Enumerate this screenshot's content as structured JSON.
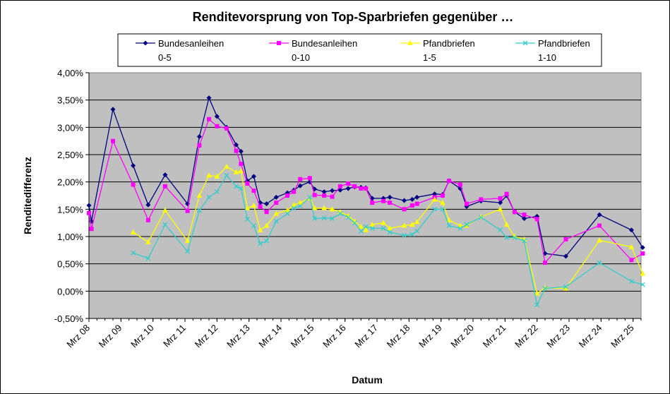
{
  "chart_data": {
    "type": "line",
    "title": "Renditevorsprung von Top-Sparbriefen gegenüber …",
    "xlabel": "Datum",
    "ylabel": "Renditedifferenz",
    "ylim": [
      -0.5,
      4.0
    ],
    "y_step": 0.5,
    "x_range": [
      2008.0,
      2025.25
    ],
    "y_ticks": [
      "-0,50%",
      "0,00%",
      "0,50%",
      "1,00%",
      "1,50%",
      "2,00%",
      "2,50%",
      "3,00%",
      "3,50%",
      "4,00%"
    ],
    "x_ticks": [
      {
        "label": "Mrz 08",
        "x": 2008.0
      },
      {
        "label": "Mrz 09",
        "x": 2009.0
      },
      {
        "label": "Mrz 10",
        "x": 2010.0
      },
      {
        "label": "Mrz 11",
        "x": 2011.0
      },
      {
        "label": "Mrz 12",
        "x": 2012.0
      },
      {
        "label": "Mrz 13",
        "x": 2013.0
      },
      {
        "label": "Mrz 14",
        "x": 2014.0
      },
      {
        "label": "Mrz 15",
        "x": 2015.0
      },
      {
        "label": "Mrz 16",
        "x": 2016.0
      },
      {
        "label": "Mrz 17",
        "x": 2017.0
      },
      {
        "label": "Mrz 18",
        "x": 2018.0
      },
      {
        "label": "Mrz 19",
        "x": 2019.0
      },
      {
        "label": "Mrz 20",
        "x": 2020.0
      },
      {
        "label": "Mrz 21",
        "x": 2021.0
      },
      {
        "label": "Mrz 22",
        "x": 2022.0
      },
      {
        "label": "Mrz 23",
        "x": 2023.0
      },
      {
        "label": "Mrz 24",
        "x": 2024.0
      },
      {
        "label": "Mrz 25",
        "x": 2025.0
      }
    ],
    "grid": true,
    "legend_position": "top",
    "series": [
      {
        "name_line1": "Bundesanleihen",
        "name_line2": "0-5",
        "color": "#000080",
        "marker": "diamond",
        "x": [
          2008.0,
          2008.08,
          2008.75,
          2009.38,
          2009.85,
          2010.38,
          2011.08,
          2011.45,
          2011.75,
          2012.0,
          2012.3,
          2012.6,
          2012.75,
          2012.95,
          2013.15,
          2013.35,
          2013.55,
          2013.85,
          2014.2,
          2014.4,
          2014.6,
          2014.9,
          2015.05,
          2015.35,
          2015.6,
          2015.85,
          2016.1,
          2016.3,
          2016.5,
          2016.65,
          2016.85,
          2017.2,
          2017.4,
          2017.85,
          2018.1,
          2018.25,
          2018.8,
          2019.05,
          2019.25,
          2019.6,
          2019.8,
          2020.25,
          2020.85,
          2021.05,
          2021.3,
          2021.6,
          2022.0,
          2022.25,
          2022.9,
          2023.95,
          2024.95,
          2025.3
        ],
        "y": [
          1.57,
          1.28,
          3.33,
          2.3,
          1.58,
          2.13,
          1.6,
          2.83,
          3.54,
          3.2,
          3.0,
          2.68,
          2.56,
          2.02,
          2.1,
          1.62,
          1.6,
          1.72,
          1.8,
          1.85,
          1.93,
          2.0,
          1.87,
          1.82,
          1.84,
          1.85,
          1.88,
          1.91,
          1.9,
          1.89,
          1.7,
          1.7,
          1.72,
          1.66,
          1.68,
          1.72,
          1.78,
          1.77,
          2.02,
          1.88,
          1.55,
          1.65,
          1.62,
          1.75,
          1.45,
          1.33,
          1.37,
          0.69,
          0.64,
          1.4,
          1.12,
          0.8
        ]
      },
      {
        "name_line1": "Bundesanleihen",
        "name_line2": "0-10",
        "color": "#ff00ff",
        "marker": "square",
        "x": [
          2008.0,
          2008.08,
          2008.75,
          2009.38,
          2009.85,
          2010.38,
          2011.08,
          2011.45,
          2011.75,
          2012.0,
          2012.3,
          2012.6,
          2012.75,
          2012.95,
          2013.15,
          2013.35,
          2013.55,
          2013.85,
          2014.2,
          2014.4,
          2014.6,
          2014.9,
          2015.05,
          2015.35,
          2015.6,
          2015.85,
          2016.1,
          2016.3,
          2016.5,
          2016.65,
          2016.85,
          2017.2,
          2017.4,
          2017.85,
          2018.1,
          2018.25,
          2018.8,
          2019.05,
          2019.25,
          2019.6,
          2019.8,
          2020.25,
          2020.85,
          2021.05,
          2021.3,
          2021.6,
          2022.0,
          2022.25,
          2022.9,
          2023.95,
          2024.95,
          2025.3
        ],
        "y": [
          1.43,
          1.14,
          2.75,
          1.95,
          1.3,
          1.92,
          1.47,
          2.67,
          3.15,
          3.02,
          2.98,
          2.57,
          2.33,
          1.97,
          1.84,
          1.55,
          1.45,
          1.62,
          1.75,
          1.82,
          2.05,
          2.07,
          1.76,
          1.75,
          1.73,
          1.92,
          1.97,
          1.92,
          1.88,
          1.88,
          1.62,
          1.65,
          1.62,
          1.5,
          1.57,
          1.6,
          1.72,
          1.75,
          2.02,
          1.95,
          1.6,
          1.68,
          1.7,
          1.78,
          1.45,
          1.4,
          1.32,
          0.52,
          0.95,
          1.2,
          0.57,
          0.69
        ]
      },
      {
        "name_line1": "Pfandbriefen",
        "name_line2": "1-5",
        "color": "#ffff00",
        "marker": "triangle",
        "x": [
          2009.38,
          2009.85,
          2010.38,
          2011.08,
          2011.45,
          2011.75,
          2012.0,
          2012.3,
          2012.6,
          2012.75,
          2012.95,
          2013.15,
          2013.35,
          2013.55,
          2013.85,
          2014.2,
          2014.4,
          2014.6,
          2014.9,
          2015.05,
          2015.35,
          2015.6,
          2015.85,
          2016.1,
          2016.3,
          2016.5,
          2016.65,
          2016.85,
          2017.2,
          2017.4,
          2017.85,
          2018.1,
          2018.25,
          2018.8,
          2019.05,
          2019.25,
          2019.6,
          2019.8,
          2020.25,
          2020.85,
          2021.05,
          2021.3,
          2021.6,
          2022.0,
          2022.25,
          2022.9,
          2023.95,
          2024.95,
          2025.3
        ],
        "y": [
          1.08,
          0.9,
          1.48,
          0.92,
          1.75,
          2.12,
          2.1,
          2.28,
          2.18,
          2.2,
          1.52,
          1.57,
          1.12,
          1.2,
          1.42,
          1.48,
          1.58,
          1.62,
          1.7,
          1.52,
          1.52,
          1.5,
          1.45,
          1.38,
          1.28,
          1.18,
          1.12,
          1.22,
          1.25,
          1.15,
          1.2,
          1.22,
          1.27,
          1.68,
          1.62,
          1.3,
          1.2,
          1.2,
          1.36,
          1.5,
          1.22,
          1.0,
          0.95,
          -0.04,
          0.06,
          0.05,
          0.93,
          0.81,
          0.32
        ]
      },
      {
        "name_line1": "Pfandbriefen",
        "name_line2": "1-10",
        "color": "#33cccc",
        "marker": "x",
        "x": [
          2009.38,
          2009.85,
          2010.38,
          2011.08,
          2011.45,
          2011.75,
          2012.0,
          2012.3,
          2012.6,
          2012.75,
          2012.95,
          2013.15,
          2013.35,
          2013.55,
          2013.85,
          2014.2,
          2014.4,
          2014.6,
          2014.9,
          2015.05,
          2015.35,
          2015.6,
          2015.85,
          2016.1,
          2016.3,
          2016.5,
          2016.65,
          2016.85,
          2017.2,
          2017.4,
          2017.85,
          2018.1,
          2018.25,
          2018.8,
          2019.05,
          2019.25,
          2019.6,
          2019.8,
          2020.25,
          2020.85,
          2021.05,
          2021.3,
          2021.6,
          2022.0,
          2022.25,
          2022.9,
          2023.95,
          2024.95,
          2025.3
        ],
        "y": [
          0.7,
          0.6,
          1.22,
          0.73,
          1.48,
          1.72,
          1.82,
          2.12,
          1.92,
          1.88,
          1.32,
          1.2,
          0.87,
          0.92,
          1.28,
          1.42,
          1.52,
          1.56,
          1.72,
          1.33,
          1.34,
          1.33,
          1.42,
          1.35,
          1.25,
          1.1,
          1.18,
          1.15,
          1.15,
          1.08,
          1.02,
          1.04,
          1.1,
          1.5,
          1.5,
          1.2,
          1.15,
          1.22,
          1.35,
          1.12,
          0.98,
          0.98,
          0.92,
          -0.25,
          0.05,
          0.08,
          0.52,
          0.18,
          0.12
        ]
      }
    ]
  }
}
